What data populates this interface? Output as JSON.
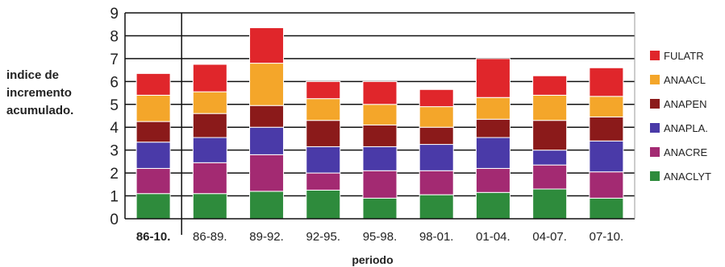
{
  "chart_data": {
    "type": "bar",
    "stacked": true,
    "title": "",
    "ylabel": [
      "indice de",
      "incremento",
      "acumulado."
    ],
    "xlabel": "periodo",
    "ylim": [
      0,
      9
    ],
    "yticks": [
      0,
      1,
      2,
      3,
      4,
      5,
      6,
      7,
      8,
      9
    ],
    "grid": true,
    "legend_position": "right",
    "categories": [
      "86-10.",
      "86-89.",
      "89-92.",
      "92-95.",
      "95-98.",
      "98-01.",
      "01-04.",
      "04-07.",
      "07-10."
    ],
    "series": [
      {
        "name": "ANACLYT",
        "color": "#2e8b3c",
        "values": [
          1.1,
          1.1,
          1.2,
          1.25,
          0.9,
          1.05,
          1.15,
          1.3,
          0.9
        ]
      },
      {
        "name": "ANACRE",
        "color": "#a32a72",
        "values": [
          1.1,
          1.35,
          1.6,
          0.75,
          1.2,
          1.05,
          1.05,
          1.05,
          1.15
        ]
      },
      {
        "name": "ANAPLA.",
        "color": "#4a3aa8",
        "values": [
          1.15,
          1.1,
          1.2,
          1.15,
          1.05,
          1.15,
          1.35,
          0.65,
          1.35
        ]
      },
      {
        "name": "ANAPEN",
        "color": "#8b1a1a",
        "values": [
          0.9,
          1.05,
          0.95,
          1.15,
          0.95,
          0.75,
          0.8,
          1.3,
          1.05
        ]
      },
      {
        "name": "ANAACL",
        "color": "#f4a62a",
        "values": [
          1.15,
          0.95,
          1.85,
          0.95,
          0.9,
          0.9,
          0.95,
          1.1,
          0.9
        ]
      },
      {
        "name": "FULATR",
        "color": "#e0262b",
        "values": [
          0.95,
          1.2,
          1.55,
          0.75,
          1.0,
          0.75,
          1.7,
          0.85,
          1.25
        ]
      }
    ]
  }
}
